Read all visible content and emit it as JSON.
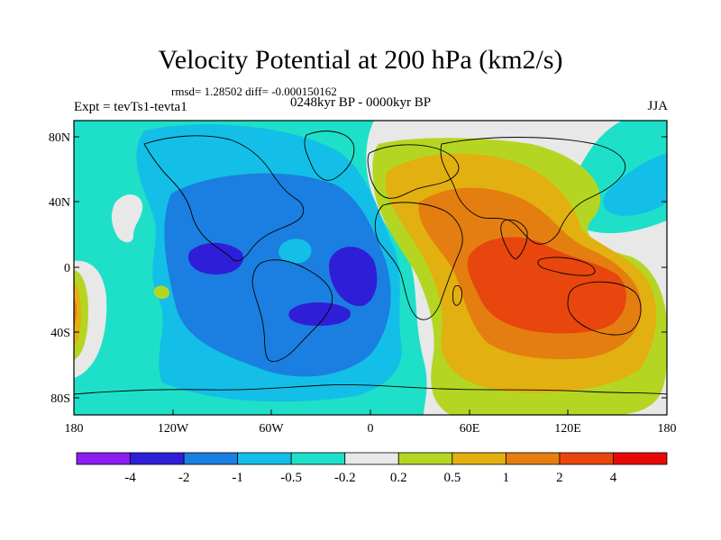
{
  "title": "Velocity Potential at 200 hPa (km2/s)",
  "stats": "rmsd= 1.28502 diff= -0.000150162",
  "experiment": "Expt = tevTs1-tevta1",
  "period": "0248kyr BP - 0000kyr BP",
  "season": "JJA",
  "lat_ticks": [
    "80N",
    "40N",
    "0",
    "40S",
    "80S"
  ],
  "lon_ticks": [
    "180",
    "120W",
    "60W",
    "0",
    "60E",
    "120E",
    "180"
  ],
  "colorbar": {
    "labels": [
      "-4",
      "-2",
      "-1",
      "-0.5",
      "-0.2",
      "0.2",
      "0.5",
      "1",
      "2",
      "4"
    ],
    "colors": [
      "#8a1ff0",
      "#2f1ed8",
      "#1a7fe0",
      "#13bfe6",
      "#1ee0c8",
      "#e8e8e8",
      "#b4d622",
      "#e2b010",
      "#e47e10",
      "#e8460e",
      "#e80808"
    ]
  }
}
